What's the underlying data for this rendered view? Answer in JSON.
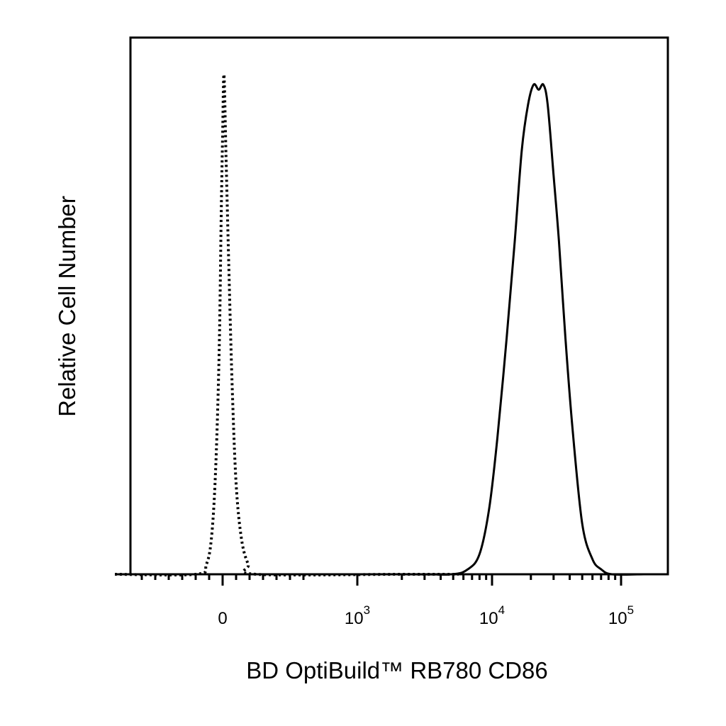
{
  "chart_data": {
    "type": "line",
    "title": "",
    "xlabel": "BD OptiBuild™ RB780 CD86",
    "ylabel": "Relative Cell Number",
    "x_scale": "biexponential",
    "xlim": [
      -800,
      150000
    ],
    "ylim": [
      0,
      1.0
    ],
    "grid": false,
    "legend": "none",
    "x_tick_labels": [
      {
        "value": 0,
        "base": "0",
        "exp": ""
      },
      {
        "value": 1000,
        "base": "10",
        "exp": "3"
      },
      {
        "value": 10000,
        "base": "10",
        "exp": "4"
      },
      {
        "value": 100000,
        "base": "10",
        "exp": "5"
      }
    ],
    "series": [
      {
        "style": "dotted",
        "color": "#000000",
        "points": [
          [
            -800,
            0
          ],
          [
            -200,
            0
          ],
          [
            -120,
            0.02
          ],
          [
            -80,
            0.08
          ],
          [
            -50,
            0.22
          ],
          [
            -25,
            0.45
          ],
          [
            -10,
            0.72
          ],
          [
            0,
            0.87
          ],
          [
            10,
            0.99
          ],
          [
            25,
            0.83
          ],
          [
            45,
            0.62
          ],
          [
            70,
            0.38
          ],
          [
            100,
            0.18
          ],
          [
            140,
            0.07
          ],
          [
            190,
            0.02
          ],
          [
            250,
            0
          ],
          [
            2000,
            0
          ],
          [
            5500,
            0
          ]
        ]
      },
      {
        "style": "solid",
        "color": "#000000",
        "points": [
          [
            -800,
            0
          ],
          [
            2000,
            0
          ],
          [
            4800,
            0
          ],
          [
            6500,
            0.01
          ],
          [
            8000,
            0.04
          ],
          [
            9500,
            0.13
          ],
          [
            11000,
            0.27
          ],
          [
            13000,
            0.47
          ],
          [
            15000,
            0.66
          ],
          [
            17000,
            0.84
          ],
          [
            19000,
            0.93
          ],
          [
            21000,
            0.97
          ],
          [
            23000,
            0.96
          ],
          [
            25000,
            0.97
          ],
          [
            27000,
            0.93
          ],
          [
            30000,
            0.79
          ],
          [
            33000,
            0.66
          ],
          [
            37000,
            0.47
          ],
          [
            42000,
            0.29
          ],
          [
            50000,
            0.1
          ],
          [
            60000,
            0.03
          ],
          [
            70000,
            0.01
          ],
          [
            85000,
            0
          ],
          [
            150000,
            0
          ]
        ]
      }
    ]
  }
}
